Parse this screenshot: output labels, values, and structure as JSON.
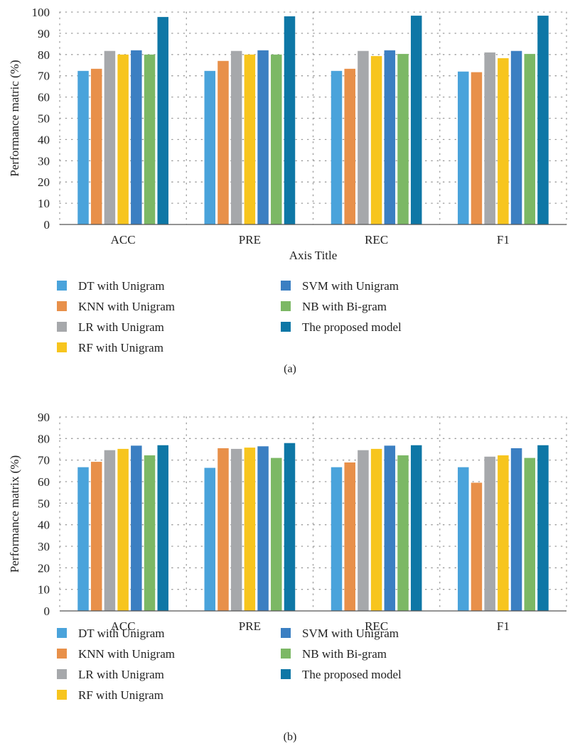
{
  "chart_data": [
    {
      "type": "bar",
      "panel_label": "(a)",
      "xlabel": "Axis Title",
      "ylabel": "Performance matric (%)",
      "ylim": [
        0,
        100
      ],
      "yticks": [
        0,
        10,
        20,
        30,
        40,
        50,
        60,
        70,
        80,
        90,
        100
      ],
      "grid": true,
      "categories": [
        "ACC",
        "PRE",
        "REC",
        "F1"
      ],
      "legend_position": "bottom",
      "series": [
        {
          "name": "DT with Unigram",
          "color": "#4aa3db",
          "values": [
            72.3,
            72.3,
            72.3,
            72.0
          ]
        },
        {
          "name": "KNN with Unigram",
          "color": "#e8904a",
          "values": [
            73.3,
            77.0,
            73.3,
            71.7
          ]
        },
        {
          "name": "LR with Unigram",
          "color": "#a6a8ab",
          "values": [
            81.7,
            81.7,
            81.7,
            81.0
          ]
        },
        {
          "name": "RF with Unigram",
          "color": "#f7c51e",
          "values": [
            80.0,
            80.0,
            79.3,
            78.3
          ]
        },
        {
          "name": "SVM with Unigram",
          "color": "#3b7fc2",
          "values": [
            82.0,
            82.0,
            82.0,
            81.7
          ]
        },
        {
          "name": "NB with Bi-gram",
          "color": "#7cb865",
          "values": [
            80.0,
            80.0,
            80.3,
            80.3
          ]
        },
        {
          "name": "The proposed model",
          "color": "#0e77a6",
          "values": [
            97.7,
            98.0,
            98.3,
            98.3
          ]
        }
      ]
    },
    {
      "type": "bar",
      "panel_label": "(b)",
      "xlabel": "",
      "ylabel": "Performance matrix (%)",
      "ylim": [
        0,
        90
      ],
      "yticks": [
        0,
        10,
        20,
        30,
        40,
        50,
        60,
        70,
        80,
        90
      ],
      "grid": true,
      "categories": [
        "ACC",
        "PRE",
        "REC",
        "F1"
      ],
      "legend_position": "bottom",
      "series": [
        {
          "name": "DT with Unigram",
          "color": "#4aa3db",
          "values": [
            66.7,
            66.4,
            66.7,
            66.7
          ]
        },
        {
          "name": "KNN with Unigram",
          "color": "#e8904a",
          "values": [
            69.2,
            75.5,
            68.9,
            59.5
          ]
        },
        {
          "name": "LR with Unigram",
          "color": "#a6a8ab",
          "values": [
            74.6,
            75.2,
            74.6,
            71.6
          ]
        },
        {
          "name": "RF with Unigram",
          "color": "#f7c51e",
          "values": [
            75.2,
            75.8,
            75.2,
            72.2
          ]
        },
        {
          "name": "SVM with Unigram",
          "color": "#3b7fc2",
          "values": [
            76.7,
            76.4,
            76.7,
            75.5
          ]
        },
        {
          "name": "NB with Bi-gram",
          "color": "#7cb865",
          "values": [
            72.2,
            71.0,
            72.2,
            71.0
          ]
        },
        {
          "name": "The proposed model",
          "color": "#0e77a6",
          "values": [
            76.9,
            77.9,
            76.9,
            76.9
          ]
        }
      ]
    }
  ]
}
